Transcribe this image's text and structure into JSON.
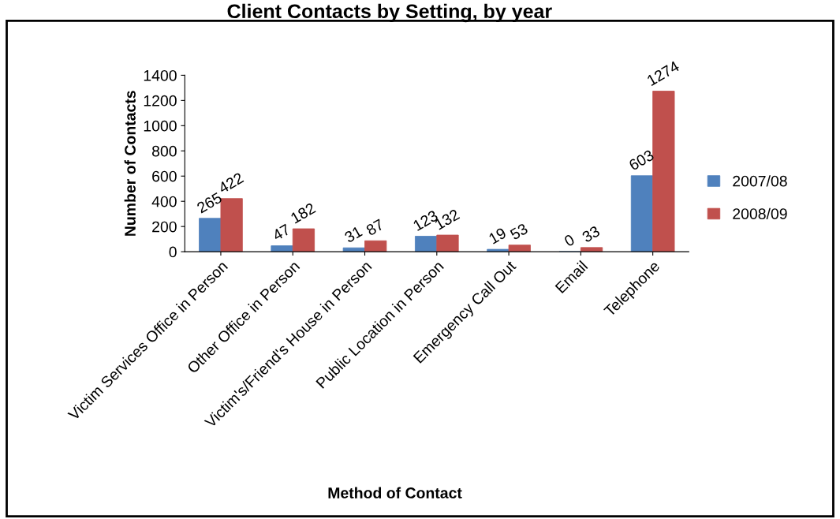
{
  "chart_data": {
    "type": "bar",
    "title": "Client Contacts by Setting, by year",
    "xlabel": "Method of Contact",
    "ylabel": "Number of Contacts",
    "categories": [
      "Victim Services Office in Person",
      "Other Office in Person",
      "Victim's/Friend's House in Person",
      "Public Location in Person",
      "Emergency Call Out",
      "Email",
      "Telephone"
    ],
    "series": [
      {
        "name": "2007/08",
        "color": "#4f81bd",
        "values": [
          265,
          47,
          31,
          123,
          19,
          0,
          603
        ]
      },
      {
        "name": "2008/09",
        "color": "#c0504d",
        "values": [
          422,
          182,
          87,
          132,
          53,
          33,
          1274
        ]
      }
    ],
    "ylim": [
      0,
      1400
    ],
    "yticks": [
      0,
      200,
      400,
      600,
      800,
      1000,
      1200,
      1400
    ],
    "grid": false,
    "legend": "right",
    "data_labels": true
  }
}
